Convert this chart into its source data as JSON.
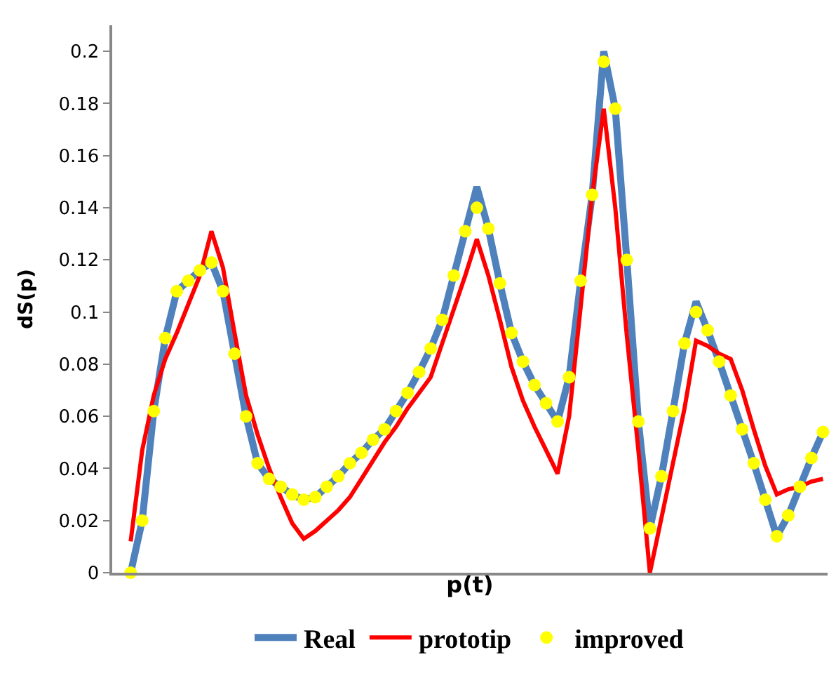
{
  "chart_data": {
    "type": "line",
    "xlabel": "p(t)",
    "ylabel": "dS(p)",
    "categories": [
      null,
      null,
      null,
      null,
      null,
      null,
      null,
      null,
      null,
      null,
      null,
      null,
      null,
      null,
      null,
      null,
      null,
      null,
      null,
      null,
      null,
      null,
      null,
      null,
      null,
      null,
      null,
      null,
      null,
      null,
      null,
      null,
      null,
      null,
      null,
      null,
      null,
      null,
      null,
      null,
      null,
      null,
      null,
      null,
      null,
      null,
      null,
      null,
      null,
      null,
      null,
      null,
      null,
      null,
      null,
      null,
      null,
      null,
      null,
      null,
      null
    ],
    "ylim": [
      0,
      0.21
    ],
    "yticks": [
      0,
      0.02,
      0.04,
      0.06,
      0.08,
      0.1,
      0.12,
      0.14,
      0.16,
      0.18,
      0.2
    ],
    "grid": false,
    "legend": "bottom",
    "tick_labels": "y",
    "series": [
      {
        "name": "Real",
        "color": "#4f81bd",
        "marker": "none",
        "values": [
          0.0,
          0.02,
          0.062,
          0.09,
          0.108,
          0.112,
          0.116,
          0.119,
          0.108,
          0.084,
          0.06,
          0.042,
          0.036,
          0.033,
          0.03,
          0.028,
          0.029,
          0.033,
          0.037,
          0.042,
          0.046,
          0.051,
          0.055,
          0.062,
          0.069,
          0.077,
          0.086,
          0.097,
          0.114,
          0.131,
          0.148,
          0.132,
          0.111,
          0.092,
          0.081,
          0.072,
          0.065,
          0.058,
          0.075,
          0.112,
          0.145,
          0.2,
          0.178,
          0.12,
          0.058,
          0.017,
          0.037,
          0.062,
          0.088,
          0.104,
          0.093,
          0.081,
          0.068,
          0.055,
          0.042,
          0.028,
          0.014,
          0.022,
          0.033,
          0.044,
          0.054
        ]
      },
      {
        "name": "prototip",
        "color": "#ff0000",
        "marker": "none",
        "values": [
          0.012,
          0.047,
          0.068,
          0.082,
          0.092,
          0.103,
          0.114,
          0.131,
          0.117,
          0.092,
          0.068,
          0.053,
          0.04,
          0.029,
          0.019,
          0.013,
          0.016,
          0.02,
          0.024,
          0.029,
          0.036,
          0.043,
          0.05,
          0.056,
          0.063,
          0.069,
          0.075,
          0.088,
          0.101,
          0.114,
          0.128,
          0.114,
          0.097,
          0.079,
          0.066,
          0.056,
          0.047,
          0.038,
          0.06,
          0.102,
          0.145,
          0.178,
          0.14,
          0.091,
          0.047,
          0.0,
          0.021,
          0.042,
          0.063,
          0.089,
          0.087,
          0.084,
          0.082,
          0.07,
          0.055,
          0.041,
          0.03,
          0.032,
          0.033,
          0.035,
          0.036
        ]
      },
      {
        "name": "improved",
        "color": "#ffff00",
        "type": "scatter",
        "marker": "circle",
        "values": [
          0.0,
          0.02,
          0.062,
          0.09,
          0.108,
          0.112,
          0.116,
          0.119,
          0.108,
          0.084,
          0.06,
          0.042,
          0.036,
          0.033,
          0.03,
          0.028,
          0.029,
          0.033,
          0.037,
          0.042,
          0.046,
          0.051,
          0.055,
          0.062,
          0.069,
          0.077,
          0.086,
          0.097,
          0.114,
          0.131,
          0.14,
          0.132,
          0.111,
          0.092,
          0.081,
          0.072,
          0.065,
          0.058,
          0.075,
          0.112,
          0.145,
          0.196,
          0.178,
          0.12,
          0.058,
          0.017,
          0.037,
          0.062,
          0.088,
          0.1,
          0.093,
          0.081,
          0.068,
          0.055,
          0.042,
          0.028,
          0.014,
          0.022,
          0.033,
          0.044,
          0.054
        ]
      }
    ]
  }
}
